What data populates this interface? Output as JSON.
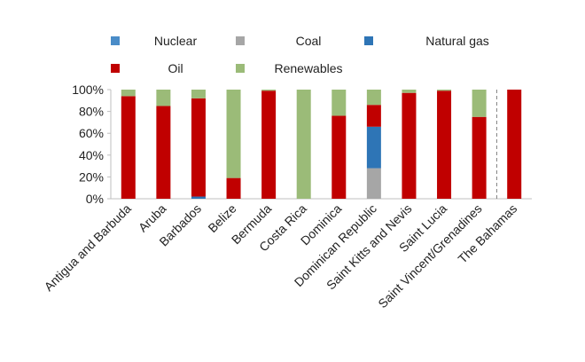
{
  "chart_data": {
    "type": "bar",
    "stacked": true,
    "title": "",
    "xlabel": "",
    "ylabel": "",
    "ylim": [
      0,
      100
    ],
    "yticks": [
      "0%",
      "20%",
      "40%",
      "60%",
      "80%",
      "100%"
    ],
    "categories": [
      "Antigua and Barbuda",
      "Aruba",
      "Barbados",
      "Belize",
      "Bermuda",
      "Costa Rica",
      "Dominica",
      "Dominican Republic",
      "Saint Kitts and Nevis",
      "Saint Lucia",
      "Saint Vincent/Grenadines",
      "The Bahamas"
    ],
    "series": [
      {
        "name": "Nuclear",
        "color": "#4a8cc8",
        "values": [
          0,
          0,
          0,
          0,
          0,
          0,
          0,
          0,
          0,
          0,
          0,
          0
        ]
      },
      {
        "name": "Coal",
        "color": "#a6a6a6",
        "values": [
          0,
          0,
          0,
          0,
          0,
          0,
          0,
          28,
          0,
          0,
          0,
          0
        ]
      },
      {
        "name": "Natural gas",
        "color": "#2e75b6",
        "values": [
          0,
          0,
          2,
          0,
          0,
          0,
          0,
          38,
          0,
          0,
          0,
          0
        ]
      },
      {
        "name": "Oil",
        "color": "#c00000",
        "values": [
          94,
          85,
          90,
          19,
          99,
          0,
          76,
          20,
          97,
          99,
          75,
          100
        ]
      },
      {
        "name": "Renewables",
        "color": "#9bbb78",
        "values": [
          6,
          15,
          8,
          81,
          1,
          100,
          24,
          14,
          3,
          1,
          25,
          0
        ]
      }
    ],
    "legend": {
      "placement": "top",
      "rows": [
        [
          "Nuclear",
          "Coal",
          "Natural gas"
        ],
        [
          "Oil",
          "Renewables"
        ]
      ]
    },
    "separator_before": "The Bahamas"
  }
}
